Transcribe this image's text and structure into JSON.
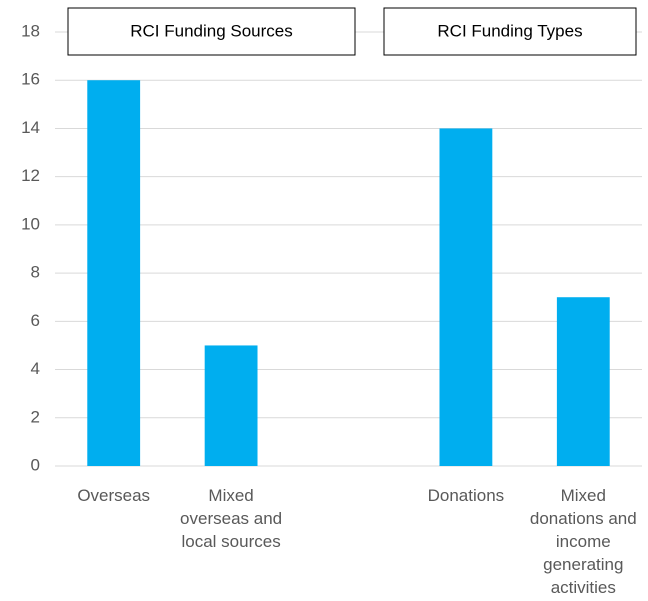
{
  "chart_data": {
    "type": "bar",
    "annotations": [
      "RCI Funding Sources",
      "RCI Funding Types"
    ],
    "categories": [
      "Overseas",
      "Mixed overseas and local sources",
      null,
      "Donations",
      "Mixed donations and income generating activities"
    ],
    "values": [
      16,
      5,
      null,
      14,
      7
    ],
    "color": "#00aeef",
    "ylim": [
      0,
      18
    ],
    "yticks": [
      0,
      2,
      4,
      6,
      8,
      10,
      12,
      14,
      16,
      18
    ],
    "grid": true
  }
}
